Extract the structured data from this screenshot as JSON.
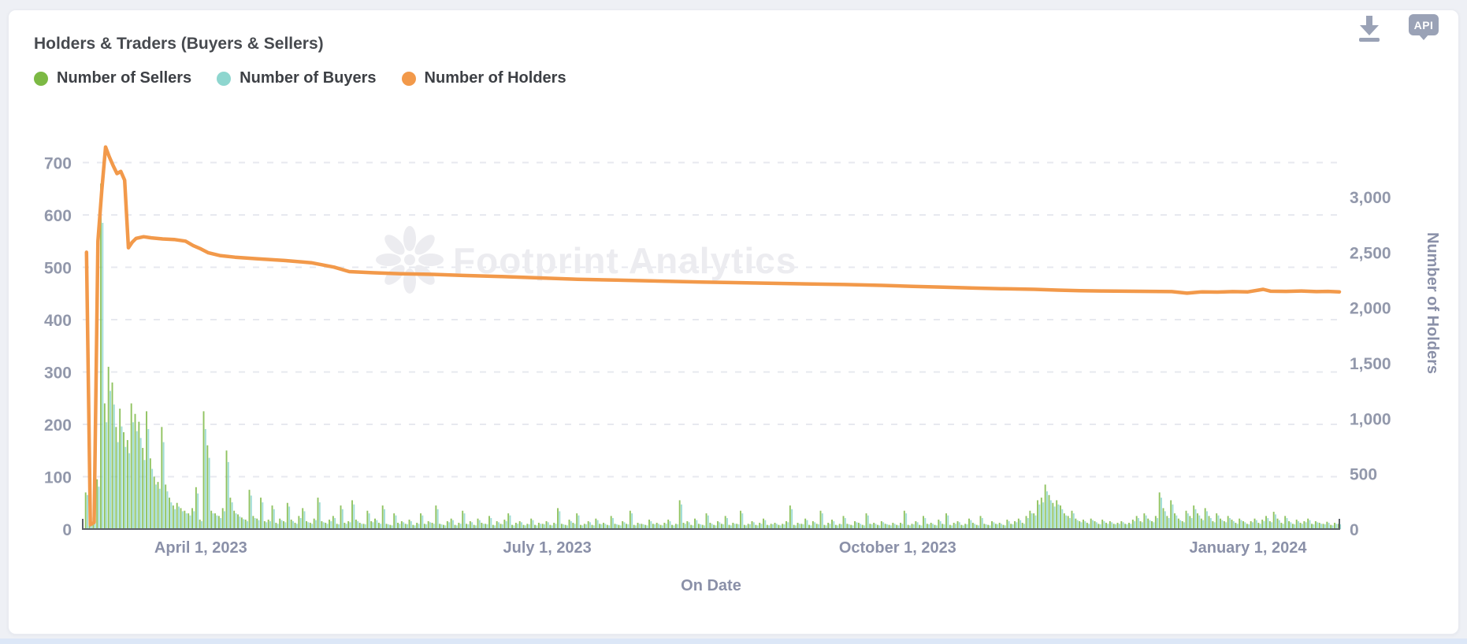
{
  "header": {
    "api_label": "API",
    "icons": [
      "download-icon",
      "api-badge-icon"
    ]
  },
  "chart_data": {
    "type": "combo",
    "title": "Holders & Traders (Buyers & Sellers)",
    "watermark": "Footprint Analytics",
    "grid": "horizontal-dashed",
    "legend_position": "top-left",
    "x_axis": {
      "label": "On Date",
      "total_days": 330,
      "ticks": [
        {
          "label": "April 1, 2023",
          "day": 31
        },
        {
          "label": "July 1, 2023",
          "day": 122
        },
        {
          "label": "October 1, 2023",
          "day": 214
        },
        {
          "label": "January 1, 2024",
          "day": 306
        }
      ]
    },
    "left_axis": {
      "ticks": [
        0,
        100,
        200,
        300,
        400,
        500,
        600,
        700
      ],
      "max": 770
    },
    "right_axis": {
      "label": "Number of Holders",
      "ticks": [
        0,
        500,
        1000,
        1500,
        2000,
        2500,
        3000
      ],
      "max": 3640
    },
    "series": [
      {
        "name": "Number of Sellers",
        "type": "bar",
        "color": "#7cb944",
        "axis": "left",
        "values": [
          0,
          70,
          12,
          22,
          95,
          660,
          240,
          310,
          280,
          195,
          230,
          185,
          170,
          240,
          220,
          205,
          155,
          225,
          135,
          100,
          90,
          195,
          85,
          60,
          45,
          50,
          40,
          35,
          30,
          40,
          80,
          18,
          225,
          160,
          35,
          30,
          25,
          40,
          150,
          60,
          35,
          28,
          22,
          18,
          75,
          25,
          20,
          60,
          15,
          18,
          45,
          12,
          20,
          15,
          50,
          18,
          12,
          25,
          40,
          15,
          12,
          20,
          60,
          15,
          12,
          18,
          25,
          10,
          45,
          12,
          15,
          55,
          18,
          12,
          10,
          35,
          15,
          20,
          12,
          45,
          10,
          8,
          30,
          12,
          15,
          10,
          18,
          8,
          12,
          30,
          10,
          15,
          12,
          45,
          10,
          8,
          15,
          20,
          8,
          12,
          35,
          10,
          15,
          8,
          20,
          12,
          10,
          25,
          8,
          15,
          10,
          18,
          30,
          8,
          12,
          15,
          8,
          10,
          20,
          8,
          12,
          10,
          15,
          8,
          12,
          40,
          10,
          8,
          18,
          12,
          30,
          8,
          10,
          15,
          8,
          20,
          10,
          12,
          8,
          25,
          10,
          8,
          15,
          10,
          35,
          8,
          12,
          10,
          8,
          18,
          10,
          12,
          8,
          12,
          18,
          8,
          10,
          55,
          12,
          15,
          8,
          20,
          10,
          8,
          30,
          12,
          8,
          15,
          10,
          25,
          8,
          12,
          10,
          35,
          8,
          10,
          15,
          8,
          12,
          20,
          8,
          10,
          12,
          8,
          10,
          15,
          45,
          8,
          12,
          10,
          20,
          8,
          15,
          10,
          35,
          8,
          12,
          18,
          8,
          10,
          25,
          10,
          8,
          15,
          12,
          8,
          30,
          10,
          12,
          8,
          15,
          10,
          8,
          12,
          8,
          12,
          35,
          8,
          10,
          15,
          8,
          25,
          10,
          12,
          8,
          18,
          10,
          30,
          8,
          12,
          15,
          8,
          10,
          20,
          12,
          8,
          25,
          10,
          8,
          15,
          10,
          12,
          8,
          18,
          10,
          15,
          20,
          12,
          25,
          35,
          30,
          55,
          60,
          85,
          65,
          50,
          55,
          45,
          30,
          25,
          35,
          20,
          15,
          18,
          12,
          20,
          15,
          10,
          18,
          12,
          15,
          10,
          12,
          15,
          10,
          12,
          18,
          25,
          15,
          30,
          20,
          15,
          25,
          70,
          40,
          25,
          55,
          30,
          20,
          15,
          35,
          25,
          45,
          30,
          20,
          40,
          25,
          15,
          30,
          20,
          15,
          25,
          18,
          12,
          20,
          15,
          10,
          15,
          20,
          12,
          18,
          25,
          15,
          33,
          20,
          12,
          25,
          15,
          10,
          18,
          12,
          15,
          20,
          10,
          15,
          12,
          10,
          14,
          8,
          12,
          10
        ]
      },
      {
        "name": "Number of Buyers",
        "type": "bar",
        "color": "#8ed6cf",
        "axis": "left",
        "values": [
          0,
          65,
          10,
          19,
          81,
          585,
          204,
          264,
          238,
          166,
          196,
          157,
          145,
          204,
          187,
          174,
          132,
          191,
          115,
          85,
          77,
          166,
          72,
          51,
          38,
          43,
          34,
          30,
          26,
          34,
          68,
          15,
          191,
          136,
          30,
          26,
          21,
          34,
          128,
          51,
          30,
          24,
          19,
          15,
          64,
          21,
          17,
          51,
          13,
          15,
          38,
          10,
          17,
          13,
          43,
          15,
          10,
          21,
          34,
          13,
          10,
          17,
          51,
          13,
          10,
          15,
          21,
          9,
          38,
          10,
          13,
          47,
          15,
          10,
          9,
          30,
          13,
          17,
          10,
          38,
          9,
          7,
          26,
          10,
          13,
          9,
          15,
          7,
          10,
          26,
          9,
          13,
          10,
          38,
          9,
          7,
          13,
          17,
          7,
          10,
          30,
          9,
          13,
          7,
          17,
          10,
          9,
          21,
          7,
          13,
          9,
          15,
          26,
          7,
          10,
          13,
          7,
          9,
          17,
          7,
          10,
          9,
          13,
          7,
          10,
          34,
          9,
          7,
          15,
          10,
          26,
          7,
          9,
          13,
          7,
          17,
          9,
          10,
          7,
          21,
          9,
          7,
          13,
          9,
          30,
          7,
          10,
          9,
          7,
          15,
          9,
          10,
          7,
          10,
          15,
          7,
          9,
          47,
          10,
          13,
          7,
          17,
          9,
          7,
          26,
          10,
          7,
          13,
          9,
          21,
          7,
          10,
          9,
          30,
          7,
          9,
          13,
          7,
          10,
          17,
          7,
          9,
          10,
          7,
          9,
          13,
          38,
          7,
          10,
          9,
          17,
          7,
          13,
          9,
          30,
          7,
          10,
          15,
          7,
          9,
          21,
          9,
          7,
          13,
          10,
          7,
          26,
          9,
          10,
          7,
          13,
          9,
          7,
          10,
          7,
          10,
          30,
          7,
          9,
          13,
          7,
          21,
          9,
          10,
          7,
          15,
          9,
          26,
          7,
          10,
          13,
          7,
          9,
          17,
          10,
          7,
          21,
          9,
          7,
          13,
          9,
          10,
          7,
          15,
          9,
          13,
          17,
          10,
          21,
          30,
          26,
          47,
          51,
          72,
          55,
          43,
          47,
          38,
          26,
          21,
          30,
          17,
          13,
          15,
          10,
          17,
          13,
          9,
          15,
          10,
          13,
          9,
          10,
          13,
          9,
          10,
          15,
          21,
          13,
          26,
          17,
          13,
          21,
          60,
          34,
          21,
          47,
          26,
          17,
          13,
          30,
          21,
          38,
          26,
          17,
          34,
          21,
          13,
          26,
          17,
          13,
          21,
          15,
          10,
          17,
          13,
          9,
          13,
          17,
          10,
          15,
          21,
          13,
          28,
          17,
          10,
          21,
          13,
          9,
          15,
          10,
          13,
          17,
          9,
          13,
          10,
          9,
          12,
          7,
          10,
          9
        ]
      },
      {
        "name": "Number of Holders",
        "type": "line",
        "color": "#f2994a",
        "axis": "right",
        "keypoints": [
          [
            1,
            2500
          ],
          [
            2,
            40
          ],
          [
            3,
            60
          ],
          [
            4,
            2600
          ],
          [
            5,
            3060
          ],
          [
            6,
            3450
          ],
          [
            7,
            3360
          ],
          [
            8,
            3280
          ],
          [
            9,
            3210
          ],
          [
            10,
            3230
          ],
          [
            11,
            3150
          ],
          [
            12,
            2540
          ],
          [
            13,
            2590
          ],
          [
            14,
            2625
          ],
          [
            16,
            2640
          ],
          [
            18,
            2630
          ],
          [
            21,
            2620
          ],
          [
            24,
            2615
          ],
          [
            27,
            2600
          ],
          [
            29,
            2560
          ],
          [
            31,
            2530
          ],
          [
            33,
            2495
          ],
          [
            36,
            2470
          ],
          [
            40,
            2455
          ],
          [
            46,
            2440
          ],
          [
            53,
            2425
          ],
          [
            60,
            2405
          ],
          [
            66,
            2365
          ],
          [
            70,
            2325
          ],
          [
            76,
            2315
          ],
          [
            84,
            2305
          ],
          [
            92,
            2300
          ],
          [
            100,
            2290
          ],
          [
            110,
            2280
          ],
          [
            120,
            2268
          ],
          [
            130,
            2255
          ],
          [
            140,
            2248
          ],
          [
            150,
            2240
          ],
          [
            160,
            2232
          ],
          [
            170,
            2226
          ],
          [
            180,
            2220
          ],
          [
            190,
            2214
          ],
          [
            200,
            2208
          ],
          [
            210,
            2200
          ],
          [
            218,
            2192
          ],
          [
            226,
            2184
          ],
          [
            234,
            2176
          ],
          [
            242,
            2170
          ],
          [
            250,
            2165
          ],
          [
            256,
            2158
          ],
          [
            262,
            2152
          ],
          [
            268,
            2150
          ],
          [
            274,
            2148
          ],
          [
            280,
            2146
          ],
          [
            286,
            2144
          ],
          [
            290,
            2130
          ],
          [
            294,
            2142
          ],
          [
            298,
            2140
          ],
          [
            302,
            2144
          ],
          [
            306,
            2142
          ],
          [
            310,
            2165
          ],
          [
            312,
            2148
          ],
          [
            316,
            2146
          ],
          [
            320,
            2150
          ],
          [
            324,
            2144
          ],
          [
            327,
            2146
          ],
          [
            330,
            2142
          ]
        ]
      }
    ]
  }
}
